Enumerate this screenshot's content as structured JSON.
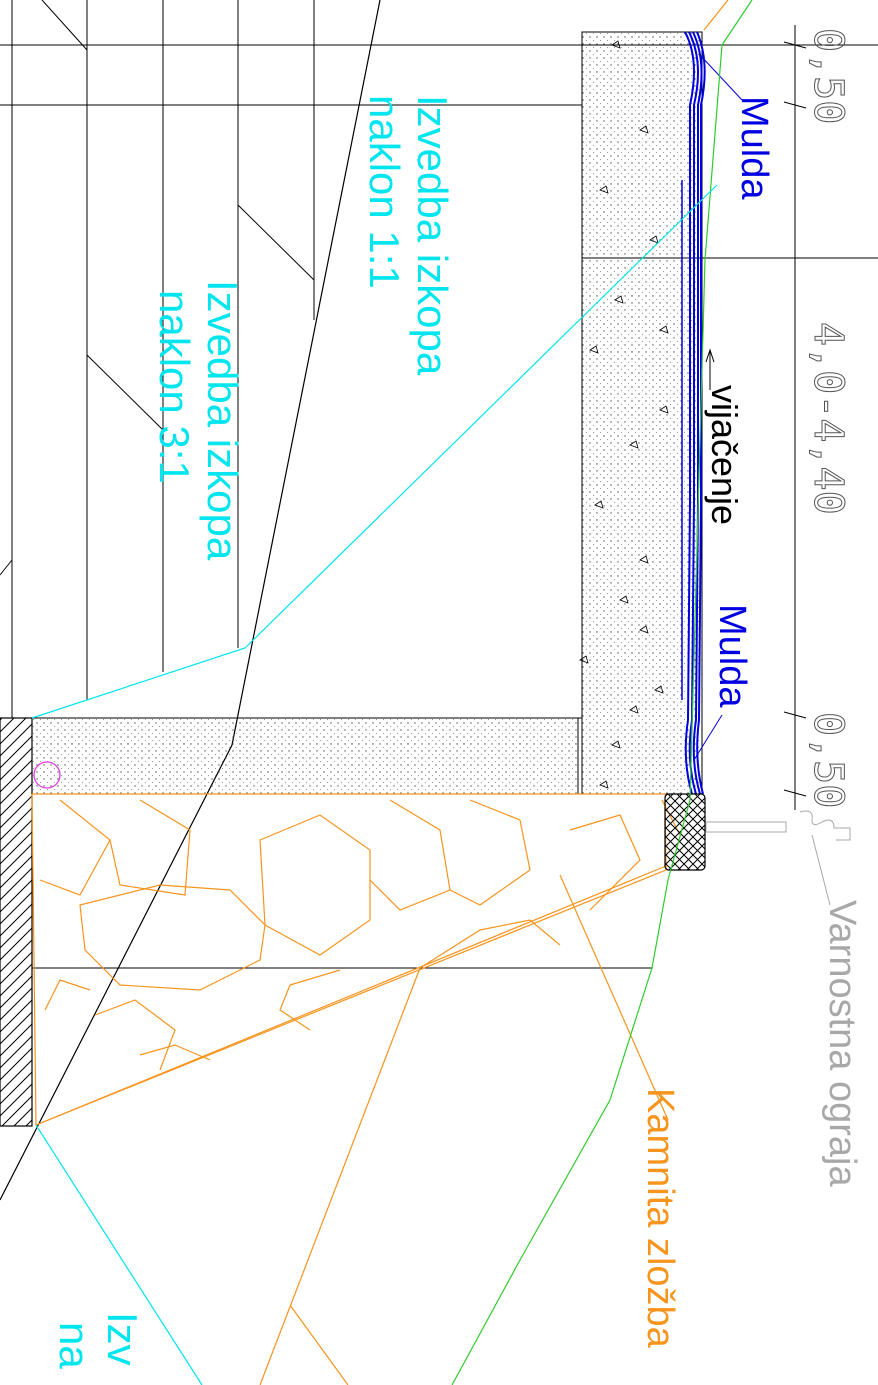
{
  "labels": {
    "mulda_top": "Mulda",
    "mulda_bottom": "Mulda",
    "vijacenje": "vijačenje",
    "excavation_1_1_line1": "Izvedba izkopa",
    "excavation_1_1_line2": "naklon 1:1",
    "excavation_3_1_line1": "Izvedba izkopa",
    "excavation_3_1_line2": "naklon 3:1",
    "excavation_bottom_line1": "Izv",
    "excavation_bottom_line2": "na",
    "guardrail": "Varnostna ograja",
    "stone_wall": "Kamnita zložba"
  },
  "dimensions": {
    "top": "0,50",
    "middle": "4,0-4,40",
    "bottom": "0,50"
  },
  "colors": {
    "cyan": "#00e5ee",
    "blue": "#0000e0",
    "orange": "#f7941d",
    "green": "#2ecc2e",
    "gray": "#a8a8a8",
    "magenta": "#e040e0",
    "black": "#000000"
  }
}
